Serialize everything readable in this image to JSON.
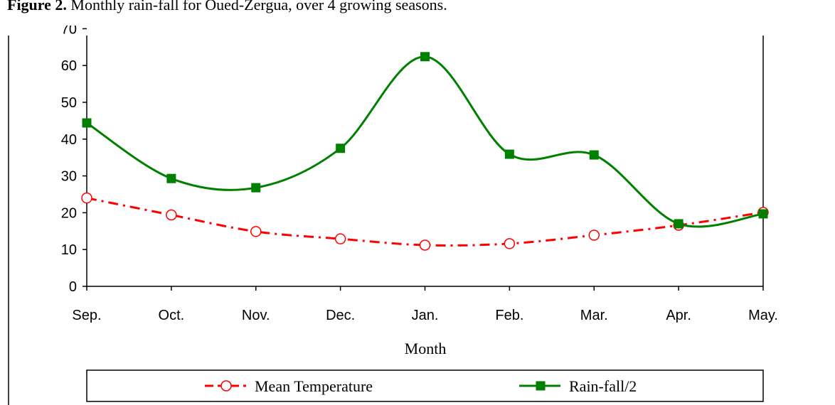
{
  "caption_label": "Figure 2.",
  "chart_data": {
    "type": "line",
    "title": "Monthly rain-fall for Oued-Zergua, over 4 growing seasons.",
    "x_label": "Month",
    "categories": [
      "Sep.",
      "Oct.",
      "Nov.",
      "Dec.",
      "Jan.",
      "Feb.",
      "Mar.",
      "Apr.",
      "May."
    ],
    "series": [
      {
        "name": "Mean Temperature",
        "color": "#ff0000",
        "values": [
          24,
          19.4,
          14.9,
          12.9,
          11.2,
          11.6,
          13.9,
          16.6,
          20.1
        ]
      },
      {
        "name": "Rain-fall/2",
        "color": "#008000",
        "values": [
          44.4,
          29.3,
          26.8,
          37.5,
          62.4,
          35.9,
          35.7,
          17,
          19.7
        ]
      }
    ],
    "ylim": [
      0,
      70
    ],
    "yticks": [
      0,
      10,
      20,
      30,
      40,
      50,
      60,
      70
    ],
    "legend": "bottom"
  }
}
